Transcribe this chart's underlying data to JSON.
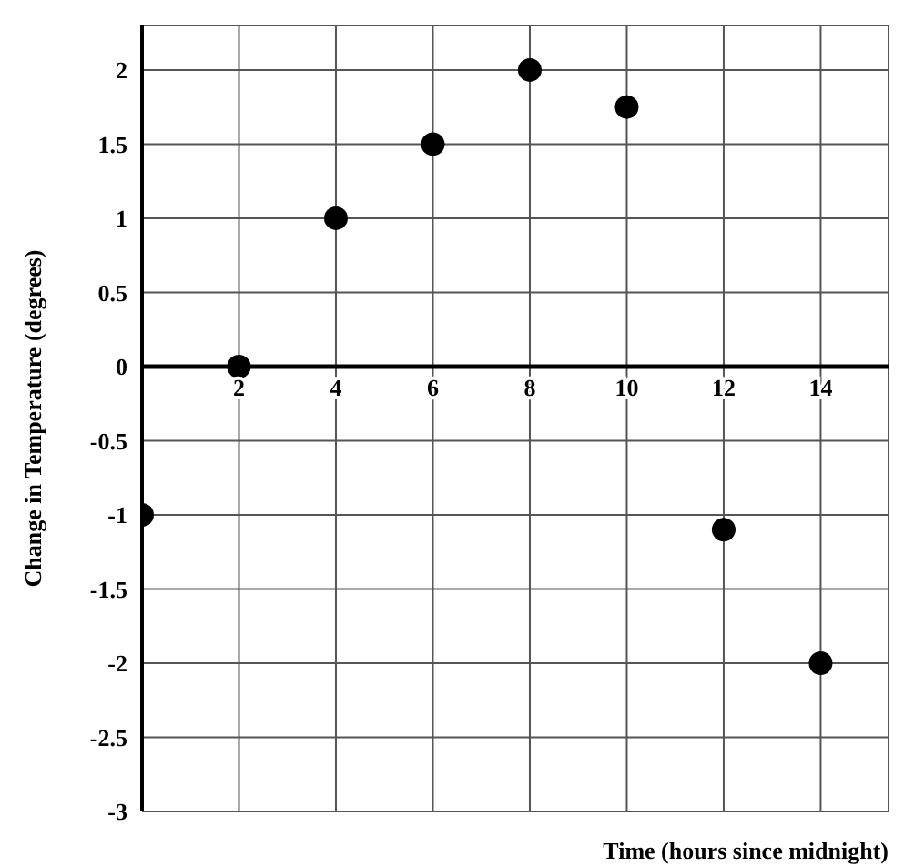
{
  "chart_data": {
    "type": "scatter",
    "xlabel": "Time (hours since midnight)",
    "ylabel": "Change in Temperature (degrees)",
    "x": [
      0,
      2,
      4,
      6,
      8,
      10,
      12,
      14
    ],
    "values": [
      -1,
      0,
      1,
      1.5,
      2,
      1.75,
      -1.1,
      -2
    ],
    "color": "#000000",
    "marker": "circle",
    "xlim": [
      0,
      15.4
    ],
    "xticks": [
      2,
      4,
      6,
      8,
      10,
      12,
      14
    ],
    "ylim": [
      -3,
      2.3
    ],
    "yticks": [
      -3,
      -2.5,
      -2,
      -1.5,
      -1,
      -0.5,
      0,
      0.5,
      1,
      1.5,
      2
    ],
    "grid": true
  }
}
